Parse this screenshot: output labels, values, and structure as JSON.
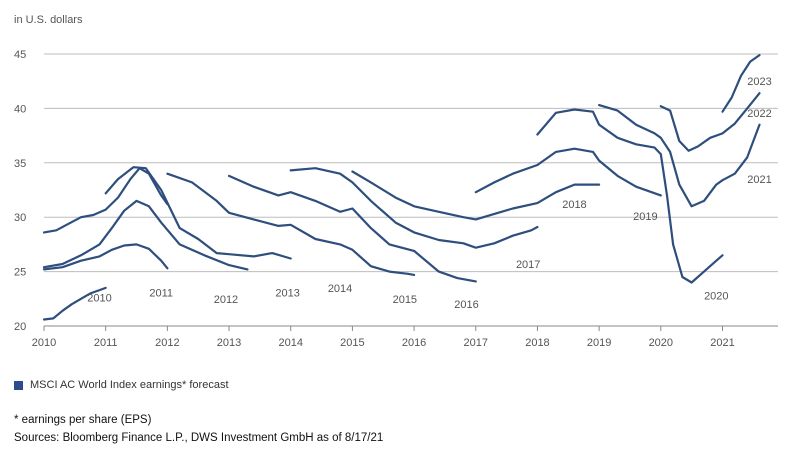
{
  "unit_label": "in U.S. dollars",
  "legend_label": "MSCI AC World Index earnings* forecast",
  "footnote": "* earnings per share (EPS)",
  "sources": "Sources: Bloomberg Finance L.P., DWS Investment GmbH as of 8/17/21",
  "colors": {
    "line": "#2e4e7e",
    "grid": "#bdbdbd",
    "text": "#555555",
    "legend": "#2d4c8f"
  },
  "chart_data": {
    "type": "line",
    "title": "",
    "xlabel": "",
    "ylabel": "in U.S. dollars",
    "xlim": [
      2010,
      2021.9
    ],
    "ylim": [
      20,
      45
    ],
    "grid": "horizontal",
    "x_ticks": [
      "2010",
      "2011",
      "2012",
      "2013",
      "2014",
      "2015",
      "2016",
      "2017",
      "2018",
      "2019",
      "2020",
      "2021"
    ],
    "y_ticks": [
      20,
      25,
      30,
      35,
      40,
      45
    ],
    "series": [
      {
        "name": "2010",
        "label_at": [
          2010.9,
          22.6
        ],
        "points": [
          [
            2010.0,
            20.6
          ],
          [
            2010.15,
            20.7
          ],
          [
            2010.3,
            21.4
          ],
          [
            2010.45,
            22.0
          ],
          [
            2010.6,
            22.5
          ],
          [
            2010.75,
            23.0
          ],
          [
            2010.9,
            23.3
          ],
          [
            2011.0,
            23.5
          ]
        ]
      },
      {
        "name": "2011",
        "label_at": [
          2011.9,
          23.1
        ],
        "points": [
          [
            2010.0,
            28.6
          ],
          [
            2010.2,
            28.8
          ],
          [
            2010.4,
            29.4
          ],
          [
            2010.6,
            30.0
          ],
          [
            2010.8,
            30.2
          ],
          [
            2011.0,
            30.7
          ],
          [
            2011.2,
            31.8
          ],
          [
            2011.4,
            33.5
          ],
          [
            2011.55,
            34.5
          ],
          [
            2011.7,
            34.0
          ],
          [
            2011.9,
            32.0
          ],
          [
            2012.0,
            31.2
          ]
        ]
      },
      {
        "name": "2012",
        "label_at": [
          2012.95,
          22.5
        ],
        "points": [
          [
            2010.0,
            25.2
          ],
          [
            2010.3,
            25.4
          ],
          [
            2010.6,
            26.0
          ],
          [
            2010.9,
            26.4
          ],
          [
            2011.1,
            27.0
          ],
          [
            2011.3,
            27.4
          ],
          [
            2011.5,
            27.5
          ],
          [
            2011.7,
            27.1
          ],
          [
            2011.9,
            26.0
          ],
          [
            2012.0,
            25.3
          ]
        ]
      },
      {
        "name": "2013",
        "label_at": [
          2013.95,
          23.1
        ],
        "points": [
          [
            2010.0,
            25.4
          ],
          [
            2010.3,
            25.7
          ],
          [
            2010.6,
            26.5
          ],
          [
            2010.9,
            27.5
          ],
          [
            2011.1,
            29.0
          ],
          [
            2011.3,
            30.6
          ],
          [
            2011.5,
            31.5
          ],
          [
            2011.7,
            31.0
          ],
          [
            2011.9,
            29.5
          ],
          [
            2012.2,
            27.5
          ],
          [
            2012.6,
            26.5
          ],
          [
            2013.0,
            25.6
          ],
          [
            2013.3,
            25.2
          ]
        ]
      },
      {
        "name": "2014",
        "label_at": [
          2014.8,
          23.5
        ],
        "points": [
          [
            2011.0,
            32.2
          ],
          [
            2011.2,
            33.5
          ],
          [
            2011.45,
            34.6
          ],
          [
            2011.65,
            34.5
          ],
          [
            2011.9,
            32.5
          ],
          [
            2012.2,
            29.0
          ],
          [
            2012.5,
            28.0
          ],
          [
            2012.8,
            26.7
          ],
          [
            2013.0,
            26.6
          ],
          [
            2013.4,
            26.4
          ],
          [
            2013.7,
            26.7
          ],
          [
            2014.0,
            26.2
          ]
        ]
      },
      {
        "name": "2015",
        "label_at": [
          2015.85,
          22.5
        ],
        "points": [
          [
            2012.0,
            34.0
          ],
          [
            2012.4,
            33.2
          ],
          [
            2012.8,
            31.5
          ],
          [
            2013.0,
            30.4
          ],
          [
            2013.4,
            29.8
          ],
          [
            2013.8,
            29.2
          ],
          [
            2014.0,
            29.3
          ],
          [
            2014.4,
            28.0
          ],
          [
            2014.8,
            27.5
          ],
          [
            2015.0,
            27.0
          ],
          [
            2015.3,
            25.5
          ],
          [
            2015.6,
            25.0
          ],
          [
            2015.9,
            24.8
          ],
          [
            2016.0,
            24.7
          ]
        ]
      },
      {
        "name": "2016",
        "label_at": [
          2016.85,
          22.0
        ],
        "points": [
          [
            2013.0,
            33.8
          ],
          [
            2013.4,
            32.8
          ],
          [
            2013.8,
            32.0
          ],
          [
            2014.0,
            32.3
          ],
          [
            2014.4,
            31.5
          ],
          [
            2014.8,
            30.5
          ],
          [
            2015.0,
            30.8
          ],
          [
            2015.3,
            29.0
          ],
          [
            2015.6,
            27.5
          ],
          [
            2016.0,
            26.9
          ],
          [
            2016.4,
            25.0
          ],
          [
            2016.7,
            24.4
          ],
          [
            2017.0,
            24.1
          ]
        ]
      },
      {
        "name": "2017",
        "label_at": [
          2017.85,
          25.7
        ],
        "points": [
          [
            2014.0,
            34.3
          ],
          [
            2014.4,
            34.5
          ],
          [
            2014.8,
            34.0
          ],
          [
            2015.0,
            33.2
          ],
          [
            2015.3,
            31.5
          ],
          [
            2015.7,
            29.5
          ],
          [
            2016.0,
            28.6
          ],
          [
            2016.4,
            27.9
          ],
          [
            2016.8,
            27.6
          ],
          [
            2017.0,
            27.2
          ],
          [
            2017.3,
            27.6
          ],
          [
            2017.6,
            28.3
          ],
          [
            2017.9,
            28.8
          ],
          [
            2018.0,
            29.1
          ]
        ]
      },
      {
        "name": "2018",
        "label_at": [
          2018.6,
          31.2
        ],
        "points": [
          [
            2015.0,
            34.2
          ],
          [
            2015.3,
            33.2
          ],
          [
            2015.7,
            31.8
          ],
          [
            2016.0,
            31.0
          ],
          [
            2016.4,
            30.5
          ],
          [
            2016.8,
            30.0
          ],
          [
            2017.0,
            29.8
          ],
          [
            2017.3,
            30.3
          ],
          [
            2017.6,
            30.8
          ],
          [
            2018.0,
            31.3
          ],
          [
            2018.3,
            32.3
          ],
          [
            2018.6,
            33.0
          ],
          [
            2019.0,
            33.0
          ]
        ]
      },
      {
        "name": "2019",
        "label_at": [
          2019.75,
          30.1
        ],
        "points": [
          [
            2017.0,
            32.3
          ],
          [
            2017.3,
            33.2
          ],
          [
            2017.6,
            34.0
          ],
          [
            2018.0,
            34.8
          ],
          [
            2018.3,
            36.0
          ],
          [
            2018.6,
            36.3
          ],
          [
            2018.9,
            36.0
          ],
          [
            2019.0,
            35.2
          ],
          [
            2019.3,
            33.8
          ],
          [
            2019.6,
            32.8
          ],
          [
            2020.0,
            32.0
          ]
        ]
      },
      {
        "name": "2020",
        "label_at": [
          2020.9,
          22.8
        ],
        "points": [
          [
            2018.0,
            37.6
          ],
          [
            2018.3,
            39.6
          ],
          [
            2018.6,
            39.9
          ],
          [
            2018.9,
            39.7
          ],
          [
            2019.0,
            38.5
          ],
          [
            2019.3,
            37.3
          ],
          [
            2019.6,
            36.7
          ],
          [
            2019.9,
            36.4
          ],
          [
            2020.0,
            35.8
          ],
          [
            2020.1,
            32.0
          ],
          [
            2020.2,
            27.5
          ],
          [
            2020.35,
            24.5
          ],
          [
            2020.5,
            24.0
          ],
          [
            2020.7,
            25.0
          ],
          [
            2020.9,
            26.0
          ],
          [
            2021.0,
            26.5
          ]
        ]
      },
      {
        "name": "2021",
        "label_at": [
          2021.6,
          33.5
        ],
        "points": [
          [
            2019.0,
            40.3
          ],
          [
            2019.3,
            39.8
          ],
          [
            2019.6,
            38.5
          ],
          [
            2019.9,
            37.7
          ],
          [
            2020.0,
            37.3
          ],
          [
            2020.15,
            36.0
          ],
          [
            2020.3,
            33.0
          ],
          [
            2020.5,
            31.0
          ],
          [
            2020.7,
            31.5
          ],
          [
            2020.9,
            33.0
          ],
          [
            2021.0,
            33.4
          ],
          [
            2021.2,
            34.0
          ],
          [
            2021.4,
            35.5
          ],
          [
            2021.6,
            38.5
          ]
        ]
      },
      {
        "name": "2022",
        "label_at": [
          2021.6,
          39.6
        ],
        "points": [
          [
            2020.0,
            40.2
          ],
          [
            2020.15,
            39.8
          ],
          [
            2020.3,
            37.0
          ],
          [
            2020.45,
            36.1
          ],
          [
            2020.6,
            36.5
          ],
          [
            2020.8,
            37.3
          ],
          [
            2021.0,
            37.7
          ],
          [
            2021.2,
            38.6
          ],
          [
            2021.4,
            40.0
          ],
          [
            2021.6,
            41.4
          ]
        ]
      },
      {
        "name": "2023",
        "label_at": [
          2021.6,
          42.5
        ],
        "points": [
          [
            2021.0,
            39.7
          ],
          [
            2021.15,
            41.0
          ],
          [
            2021.3,
            43.0
          ],
          [
            2021.45,
            44.3
          ],
          [
            2021.6,
            44.9
          ]
        ]
      }
    ]
  }
}
